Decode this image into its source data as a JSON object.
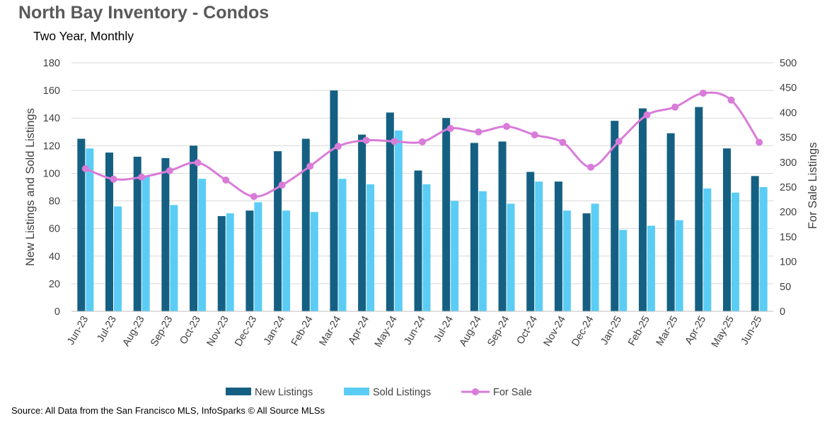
{
  "title": "North Bay Inventory - Condos",
  "subtitle": "Two Year, Monthly",
  "source": "Source: All Data from the San Francisco MLS, InfoSparks © All Source MLSs",
  "chart_data": {
    "type": "bar",
    "categories": [
      "Jun-23",
      "Jul-23",
      "Aug-23",
      "Sep-23",
      "Oct-23",
      "Nov-23",
      "Dec-23",
      "Jan-24",
      "Feb-24",
      "Mar-24",
      "Apr-24",
      "May-24",
      "Jun-24",
      "Jul-24",
      "Aug-24",
      "Sep-24",
      "Oct-24",
      "Nov-24",
      "Dec-24",
      "Jan-25",
      "Feb-25",
      "Mar-25",
      "Apr-25",
      "May-25",
      "Jun-25"
    ],
    "series": [
      {
        "name": "New Listings",
        "type": "bar",
        "axis": "left",
        "color": "#156082",
        "values": [
          125,
          115,
          112,
          111,
          120,
          69,
          73,
          116,
          125,
          160,
          128,
          144,
          102,
          140,
          122,
          123,
          101,
          94,
          71,
          138,
          147,
          129,
          148,
          118,
          98
        ]
      },
      {
        "name": "Sold Listings",
        "type": "bar",
        "axis": "left",
        "color": "#5bcdf5",
        "values": [
          118,
          76,
          98,
          77,
          96,
          71,
          79,
          73,
          72,
          96,
          92,
          131,
          92,
          80,
          87,
          78,
          94,
          73,
          78,
          59,
          62,
          66,
          89,
          86,
          90
        ]
      },
      {
        "name": "For Sale",
        "type": "line",
        "axis": "right",
        "color": "#d97bd9",
        "values": [
          287,
          266,
          270,
          283,
          299,
          264,
          231,
          254,
          292,
          332,
          344,
          342,
          341,
          368,
          361,
          372,
          355,
          340,
          290,
          342,
          395,
          411,
          439,
          425,
          340
        ]
      }
    ],
    "ylabel": "New Listings and Sold Listings",
    "y2label": "For Sale Listings",
    "ylim": [
      0,
      180
    ],
    "y2lim": [
      0,
      500
    ],
    "yticks": [
      0,
      20,
      40,
      60,
      80,
      100,
      120,
      140,
      160,
      180
    ],
    "y2ticks": [
      0,
      50,
      100,
      150,
      200,
      250,
      300,
      350,
      400,
      450,
      500
    ],
    "grid": true,
    "legend": "bottom"
  },
  "colors": {
    "gridline": "#d9d9d9",
    "axis_text": "#404040"
  }
}
